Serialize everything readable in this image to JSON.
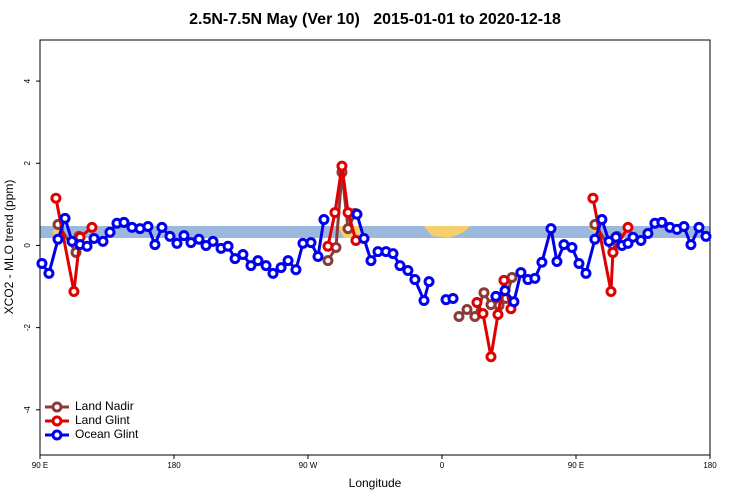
{
  "chart_data": {
    "type": "line",
    "title": "2.5N-7.5N May (Ver 10)   2015-01-01 to 2020-12-18",
    "xlabel": "Longitude",
    "ylabel": "XCO2 - MLO trend (ppm)",
    "xlim": [
      90,
      540
    ],
    "xticks": [
      {
        "value": 90,
        "label": "90 E"
      },
      180,
      {
        "value": 270,
        "label": "90 W"
      },
      {
        "value": 360,
        "label": "0"
      },
      {
        "value": 450,
        "label": "90 E"
      },
      {
        "value": 540,
        "label": "180"
      }
    ],
    "ylim": [
      -5.1,
      5
    ],
    "yticks": [
      -4,
      -2,
      0,
      2,
      4
    ],
    "legend": "bottom-left",
    "series": [
      {
        "name": "Land Nadir",
        "color": "#8b3a3a",
        "x": [
          102.1,
          114.2,
          116.2,
          200,
          283.4,
          288.8,
          292.8,
          296.9,
          301.6,
          340,
          371.4,
          376.8,
          382.1,
          388.2,
          392.9,
          398.3,
          403.0,
          407.0,
          430,
          462.7,
          474.8,
          477.5
        ],
        "values": [
          0.51,
          -0.17,
          0.22,
          null,
          -0.37,
          -0.05,
          1.78,
          0.41,
          0.78,
          null,
          -1.73,
          -1.56,
          -1.73,
          -1.15,
          -1.44,
          -1.46,
          -1.29,
          -0.78,
          null,
          0.51,
          -0.17,
          0.22
        ]
      },
      {
        "name": "Land Glint",
        "color": "#e00000",
        "x": [
          100.7,
          112.8,
          116.9,
          124.9,
          200,
          283.4,
          288.1,
          292.8,
          296.9,
          302.2,
          340,
          383.5,
          387.5,
          392.9,
          397.6,
          401.6,
          406.3,
          430,
          461.4,
          473.5,
          474.8,
          484.9
        ],
        "values": [
          1.15,
          -1.12,
          0.2,
          0.44,
          null,
          -0.02,
          0.8,
          1.93,
          0.8,
          0.12,
          null,
          -1.39,
          -1.66,
          -2.71,
          -1.68,
          -0.85,
          -1.54,
          null,
          1.15,
          -1.12,
          -0.17,
          0.44
        ]
      },
      {
        "name": "Ocean Glint",
        "color": "#0000ee",
        "x": [
          91.3,
          96.0,
          102.1,
          106.8,
          111.5,
          116.9,
          121.6,
          126.3,
          132.3,
          137.0,
          141.7,
          146.4,
          151.8,
          157.2,
          162.5,
          167.2,
          171.9,
          177.3,
          182.0,
          186.7,
          191.4,
          196.8,
          201.5,
          206.2,
          211.6,
          216.3,
          221.0,
          226.3,
          231.7,
          236.4,
          241.8,
          246.5,
          251.9,
          256.6,
          261.9,
          266.6,
          272.0,
          276.7,
          280.7,
          300,
          302.9,
          307.6,
          312.3,
          317.0,
          322.4,
          327.1,
          331.8,
          337.1,
          341.8,
          347.9,
          351.3,
          355,
          362.7,
          367.4,
          430,
          396.2,
          402.3,
          408.3,
          413.0,
          417.7,
          422.4,
          427.1,
          433.2,
          437.2,
          441.9,
          447.3,
          452.0,
          456.7,
          462.7,
          467.4,
          472.1,
          476.8,
          480.9,
          484.9,
          488.3,
          493.6,
          498.3,
          503.0,
          507.7,
          513.1,
          517.8,
          522.5,
          527.2,
          532.6,
          537.3
        ],
        "values": [
          -0.44,
          -0.68,
          0.15,
          0.66,
          0.1,
          0.02,
          -0.02,
          0.17,
          0.1,
          0.32,
          0.54,
          0.56,
          0.44,
          0.41,
          0.46,
          0.02,
          0.44,
          0.22,
          0.05,
          0.24,
          0.07,
          0.15,
          0,
          0.1,
          -0.07,
          -0.02,
          -0.32,
          -0.22,
          -0.49,
          -0.37,
          -0.49,
          -0.68,
          -0.54,
          -0.37,
          -0.59,
          0.05,
          0.07,
          -0.27,
          0.63,
          null,
          0.76,
          0.17,
          -0.37,
          -0.15,
          -0.15,
          -0.2,
          -0.49,
          -0.61,
          -0.83,
          -1.34,
          -0.88,
          null,
          -1.32,
          -1.29,
          null,
          -1.24,
          -1.1,
          -1.37,
          -0.66,
          -0.83,
          -0.8,
          -0.41,
          0.41,
          -0.39,
          0.02,
          -0.05,
          -0.44,
          -0.68,
          0.15,
          0.63,
          0.1,
          0.2,
          0,
          0.05,
          0.2,
          0.12,
          0.29,
          0.54,
          0.56,
          0.44,
          0.39,
          0.46,
          0.02,
          0.44,
          0.22
        ]
      }
    ]
  }
}
